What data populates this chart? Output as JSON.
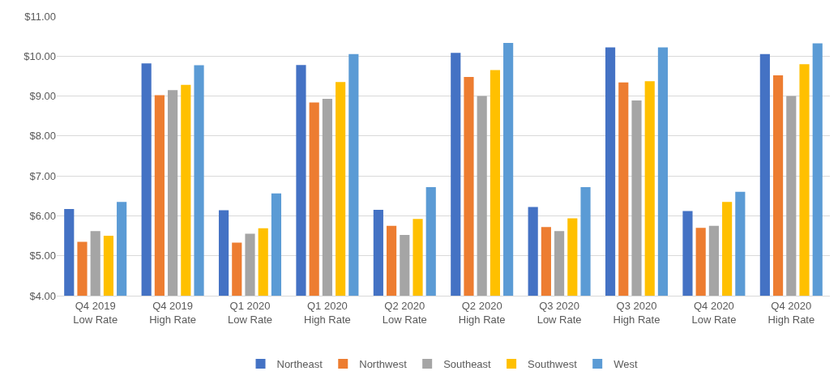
{
  "chart_data": {
    "type": "bar",
    "categories": [
      "Q4 2019\nLow Rate",
      "Q4 2019\nHigh Rate",
      "Q1 2020\nLow Rate",
      "Q1 2020\nHigh Rate",
      "Q2 2020\nLow Rate",
      "Q2 2020\nHigh Rate",
      "Q3 2020\nLow Rate",
      "Q3 2020\nHigh Rate",
      "Q4 2020\nLow Rate",
      "Q4 2020\nHigh Rate"
    ],
    "series": [
      {
        "name": "Northeast",
        "color": "#4472c4",
        "values": [
          6.17,
          9.82,
          6.14,
          9.78,
          6.15,
          10.08,
          6.22,
          10.22,
          6.12,
          10.05
        ]
      },
      {
        "name": "Northwest",
        "color": "#ed7d31",
        "values": [
          5.35,
          9.02,
          5.33,
          8.84,
          5.75,
          9.48,
          5.72,
          9.34,
          5.7,
          9.52
        ]
      },
      {
        "name": "Southeast",
        "color": "#a5a5a5",
        "values": [
          5.62,
          9.15,
          5.55,
          8.93,
          5.52,
          9.0,
          5.62,
          8.89,
          5.75,
          9.0
        ]
      },
      {
        "name": "Southwest",
        "color": "#ffc000",
        "values": [
          5.5,
          9.28,
          5.69,
          9.35,
          5.92,
          9.65,
          5.94,
          9.37,
          6.35,
          9.8
        ]
      },
      {
        "name": "West",
        "color": "#5b9bd5",
        "values": [
          6.35,
          9.77,
          6.56,
          10.05,
          6.72,
          10.33,
          6.72,
          10.22,
          6.6,
          10.32
        ]
      }
    ],
    "ylim": [
      4,
      11
    ],
    "yticks": [
      {
        "value": 4,
        "label": "$4.00"
      },
      {
        "value": 5,
        "label": "$5.00"
      },
      {
        "value": 6,
        "label": "$6.00"
      },
      {
        "value": 7,
        "label": "$7.00"
      },
      {
        "value": 8,
        "label": "$8.00"
      },
      {
        "value": 9,
        "label": "$9.00"
      },
      {
        "value": 10,
        "label": "$10.00"
      },
      {
        "value": 11,
        "label": "$11.00"
      }
    ],
    "grid": "y",
    "legend": "bottom"
  }
}
